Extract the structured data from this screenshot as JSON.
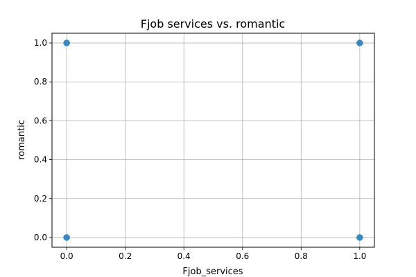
{
  "chart_data": {
    "type": "scatter",
    "title": "Fjob services vs. romantic",
    "xlabel": "Fjob_services",
    "ylabel": "romantic",
    "xlim": [
      -0.05,
      1.05
    ],
    "ylim": [
      -0.05,
      1.05
    ],
    "xticks": [
      0.0,
      0.2,
      0.4,
      0.6,
      0.8,
      1.0
    ],
    "yticks": [
      0.0,
      0.2,
      0.4,
      0.6,
      0.8,
      1.0
    ],
    "xtick_labels": [
      "0.0",
      "0.2",
      "0.4",
      "0.6",
      "0.8",
      "1.0"
    ],
    "ytick_labels": [
      "0.0",
      "0.2",
      "0.4",
      "0.6",
      "0.8",
      "1.0"
    ],
    "grid": true,
    "marker_color": "#1f77b4",
    "grid_color": "#b0b0b0",
    "points": [
      {
        "x": 0,
        "y": 0
      },
      {
        "x": 0,
        "y": 1
      },
      {
        "x": 1,
        "y": 0
      },
      {
        "x": 1,
        "y": 1
      }
    ]
  }
}
